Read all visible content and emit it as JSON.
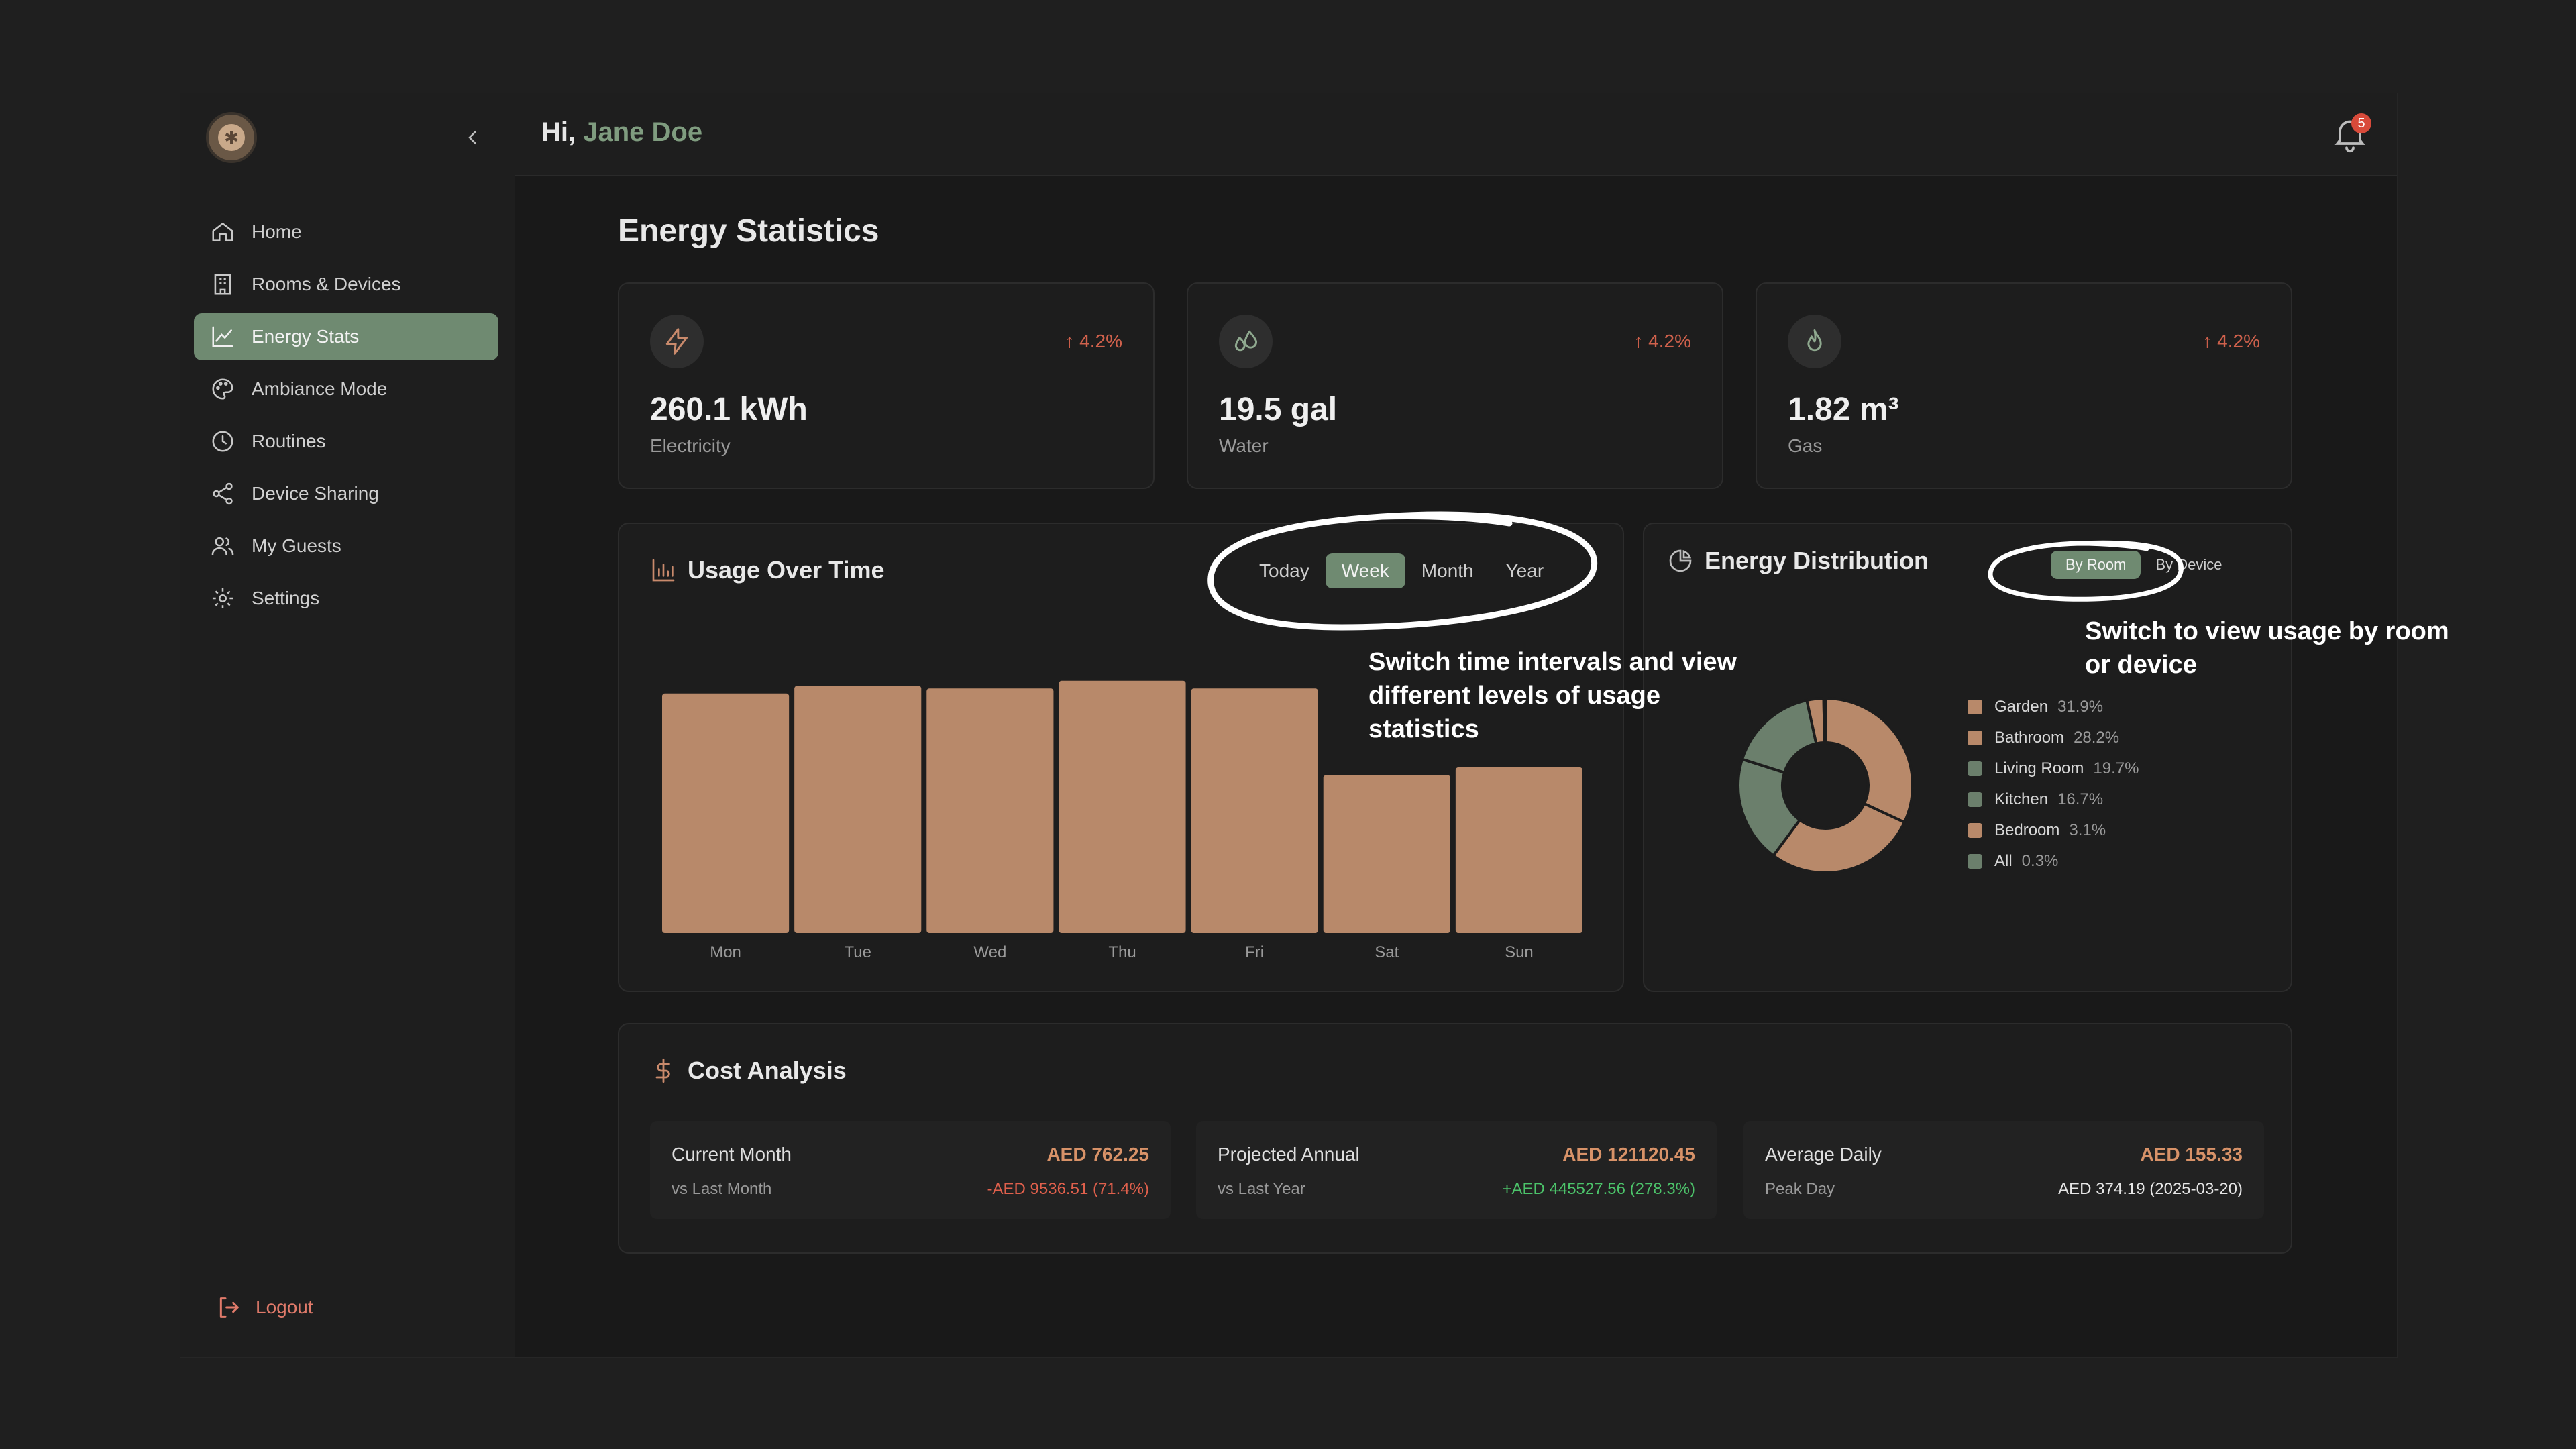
{
  "colors": {
    "accent": "#6f8a71",
    "bar": "#b8896a",
    "donut_brown": "#b8896a",
    "donut_green": "#6b7f6c",
    "up_red": "#d0614c",
    "down_green": "#4cc36a",
    "negative_red": "#e0604c"
  },
  "sidebar": {
    "items": [
      {
        "label": "Home",
        "icon": "home-icon"
      },
      {
        "label": "Rooms & Devices",
        "icon": "building-icon"
      },
      {
        "label": "Energy Stats",
        "icon": "chart-line-icon",
        "active": true
      },
      {
        "label": "Ambiance Mode",
        "icon": "palette-icon"
      },
      {
        "label": "Routines",
        "icon": "clock-icon"
      },
      {
        "label": "Device Sharing",
        "icon": "share-icon"
      },
      {
        "label": "My Guests",
        "icon": "users-icon"
      },
      {
        "label": "Settings",
        "icon": "gear-icon"
      }
    ],
    "logout_label": "Logout"
  },
  "header": {
    "greeting_prefix": "Hi,",
    "user_name": "Jane Doe",
    "notification_count": "5"
  },
  "page_title": "Energy Statistics",
  "stats": [
    {
      "value": "260.1 kWh",
      "label": "Electricity",
      "trend": "4.2%",
      "icon": "lightning-icon"
    },
    {
      "value": "19.5 gal",
      "label": "Water",
      "trend": "4.2%",
      "icon": "droplets-icon"
    },
    {
      "value": "1.82 m³",
      "label": "Gas",
      "trend": "4.2%",
      "icon": "flame-icon"
    }
  ],
  "usage": {
    "title": "Usage Over Time",
    "tabs": [
      "Today",
      "Week",
      "Month",
      "Year"
    ],
    "active_tab": "Week"
  },
  "distribution": {
    "title": "Energy Distribution",
    "tabs": [
      "By Room",
      "By Device"
    ],
    "active_tab": "By Room",
    "legend": [
      {
        "name": "Garden",
        "pct": "31.9%",
        "color": "#b8896a"
      },
      {
        "name": "Bathroom",
        "pct": "28.2%",
        "color": "#b8896a"
      },
      {
        "name": "Living Room",
        "pct": "19.7%",
        "color": "#6b7f6c"
      },
      {
        "name": "Kitchen",
        "pct": "16.7%",
        "color": "#6b7f6c"
      },
      {
        "name": "Bedroom",
        "pct": "3.1%",
        "color": "#b8896a"
      },
      {
        "name": "All",
        "pct": "0.3%",
        "color": "#6b7f6c"
      }
    ]
  },
  "chart_data": [
    {
      "type": "bar",
      "categories": [
        "Mon",
        "Tue",
        "Wed",
        "Thu",
        "Fri",
        "Sat",
        "Sun"
      ],
      "values": [
        94,
        97,
        96,
        99,
        96,
        62,
        65
      ],
      "ylim": [
        0,
        100
      ],
      "grid": false
    },
    {
      "type": "pie",
      "donut": true,
      "labels": [
        "Garden",
        "Bathroom",
        "Living Room",
        "Kitchen",
        "Bedroom",
        "All"
      ],
      "values": [
        31.9,
        28.2,
        19.7,
        16.7,
        3.1,
        0.3
      ]
    }
  ],
  "cost": {
    "title": "Cost Analysis",
    "items": [
      {
        "label": "Current Month",
        "amount": "AED 762.25",
        "sub": "vs Last Month",
        "diff": "-AED 9536.51 (71.4%)",
        "diff_color": "#e0604c"
      },
      {
        "label": "Projected Annual",
        "amount": "AED 121120.45",
        "sub": "vs Last Year",
        "diff": "+AED 445527.56 (278.3%)",
        "diff_color": "#4cc36a"
      },
      {
        "label": "Average Daily",
        "amount": "AED 155.33",
        "sub": "Peak Day",
        "diff": "AED 374.19 (2025-03-20)",
        "diff_color": "#e6e6e6"
      }
    ]
  },
  "annotations": {
    "time_tabs": "Switch time intervals and view different levels of usage statistics",
    "distribution_tabs": "Switch to view usage by room or device"
  }
}
